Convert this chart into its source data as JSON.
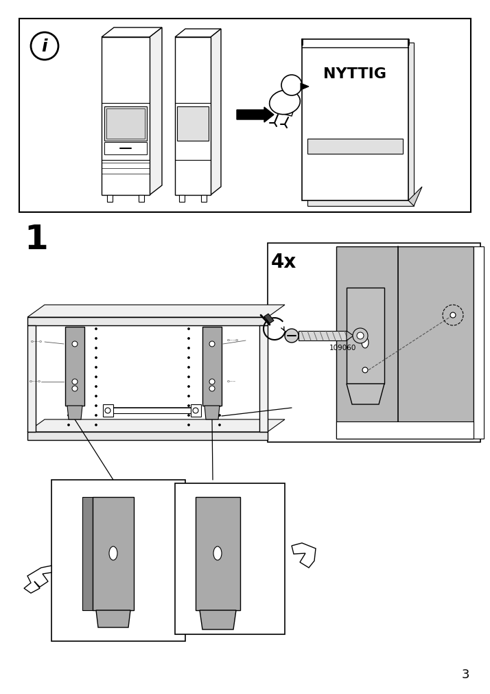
{
  "page_bg": "#ffffff",
  "gray_fill": "#aaaaaa",
  "gray_light": "#cccccc",
  "gray_panel": "#b8b8b8",
  "page_number": "3",
  "step_number": "1",
  "quantity_label": "4x",
  "part_number": "109060",
  "nyttig_text": "NYTTIG"
}
